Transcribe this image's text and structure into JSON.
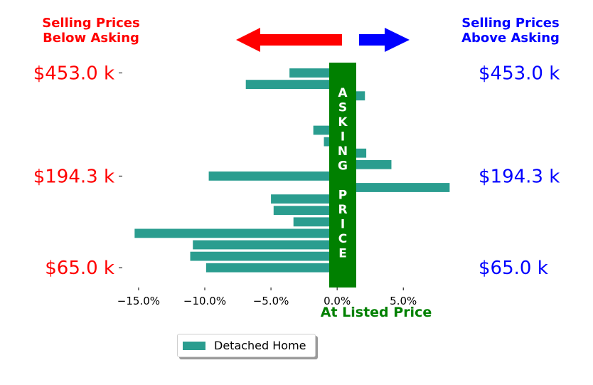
{
  "header_left": [
    "Selling Prices",
    "Below Asking"
  ],
  "header_right": [
    "Selling Prices",
    "Above Asking"
  ],
  "center_label": "At Listed Price",
  "asking_price_letters": [
    "A",
    "S",
    "K",
    "I",
    "N",
    "G",
    "",
    "P",
    "R",
    "I",
    "C",
    "E"
  ],
  "legend": {
    "label": "Detached Home"
  },
  "colors": {
    "bar": "#2a9d8f",
    "asking_band": "#008000",
    "left_text": "#ff0000",
    "right_text": "#0000ff",
    "arrow_left": "#ff0000",
    "arrow_right": "#0000ff",
    "center_label": "#008000"
  },
  "chart_data": {
    "type": "bar",
    "orientation": "horizontal",
    "series": [
      {
        "name": "Detached Home",
        "values": [
          -3.6,
          -6.9,
          2.1,
          1.2,
          1.2,
          -1.8,
          -1.0,
          2.2,
          4.1,
          -9.7,
          8.5,
          -5.0,
          -4.8,
          -3.3,
          -15.3,
          -10.9,
          -11.1,
          -9.9
        ]
      }
    ],
    "xlim": [
      -16.5,
      9.5
    ],
    "x_ticks": [
      -15,
      -10,
      -5,
      0,
      5
    ],
    "x_tick_labels": [
      "−15.0%",
      "−10.0%",
      "−5.0%",
      "0.0%",
      "5.0%"
    ],
    "y_tick_labels_left": [
      "$453.0 k",
      "$194.3 k",
      "$65.0 k"
    ],
    "y_tick_labels_right": [
      "$453.0 k",
      "$194.3 k",
      "$65.0 k"
    ],
    "y_tick_rows": [
      0,
      9,
      17
    ]
  }
}
